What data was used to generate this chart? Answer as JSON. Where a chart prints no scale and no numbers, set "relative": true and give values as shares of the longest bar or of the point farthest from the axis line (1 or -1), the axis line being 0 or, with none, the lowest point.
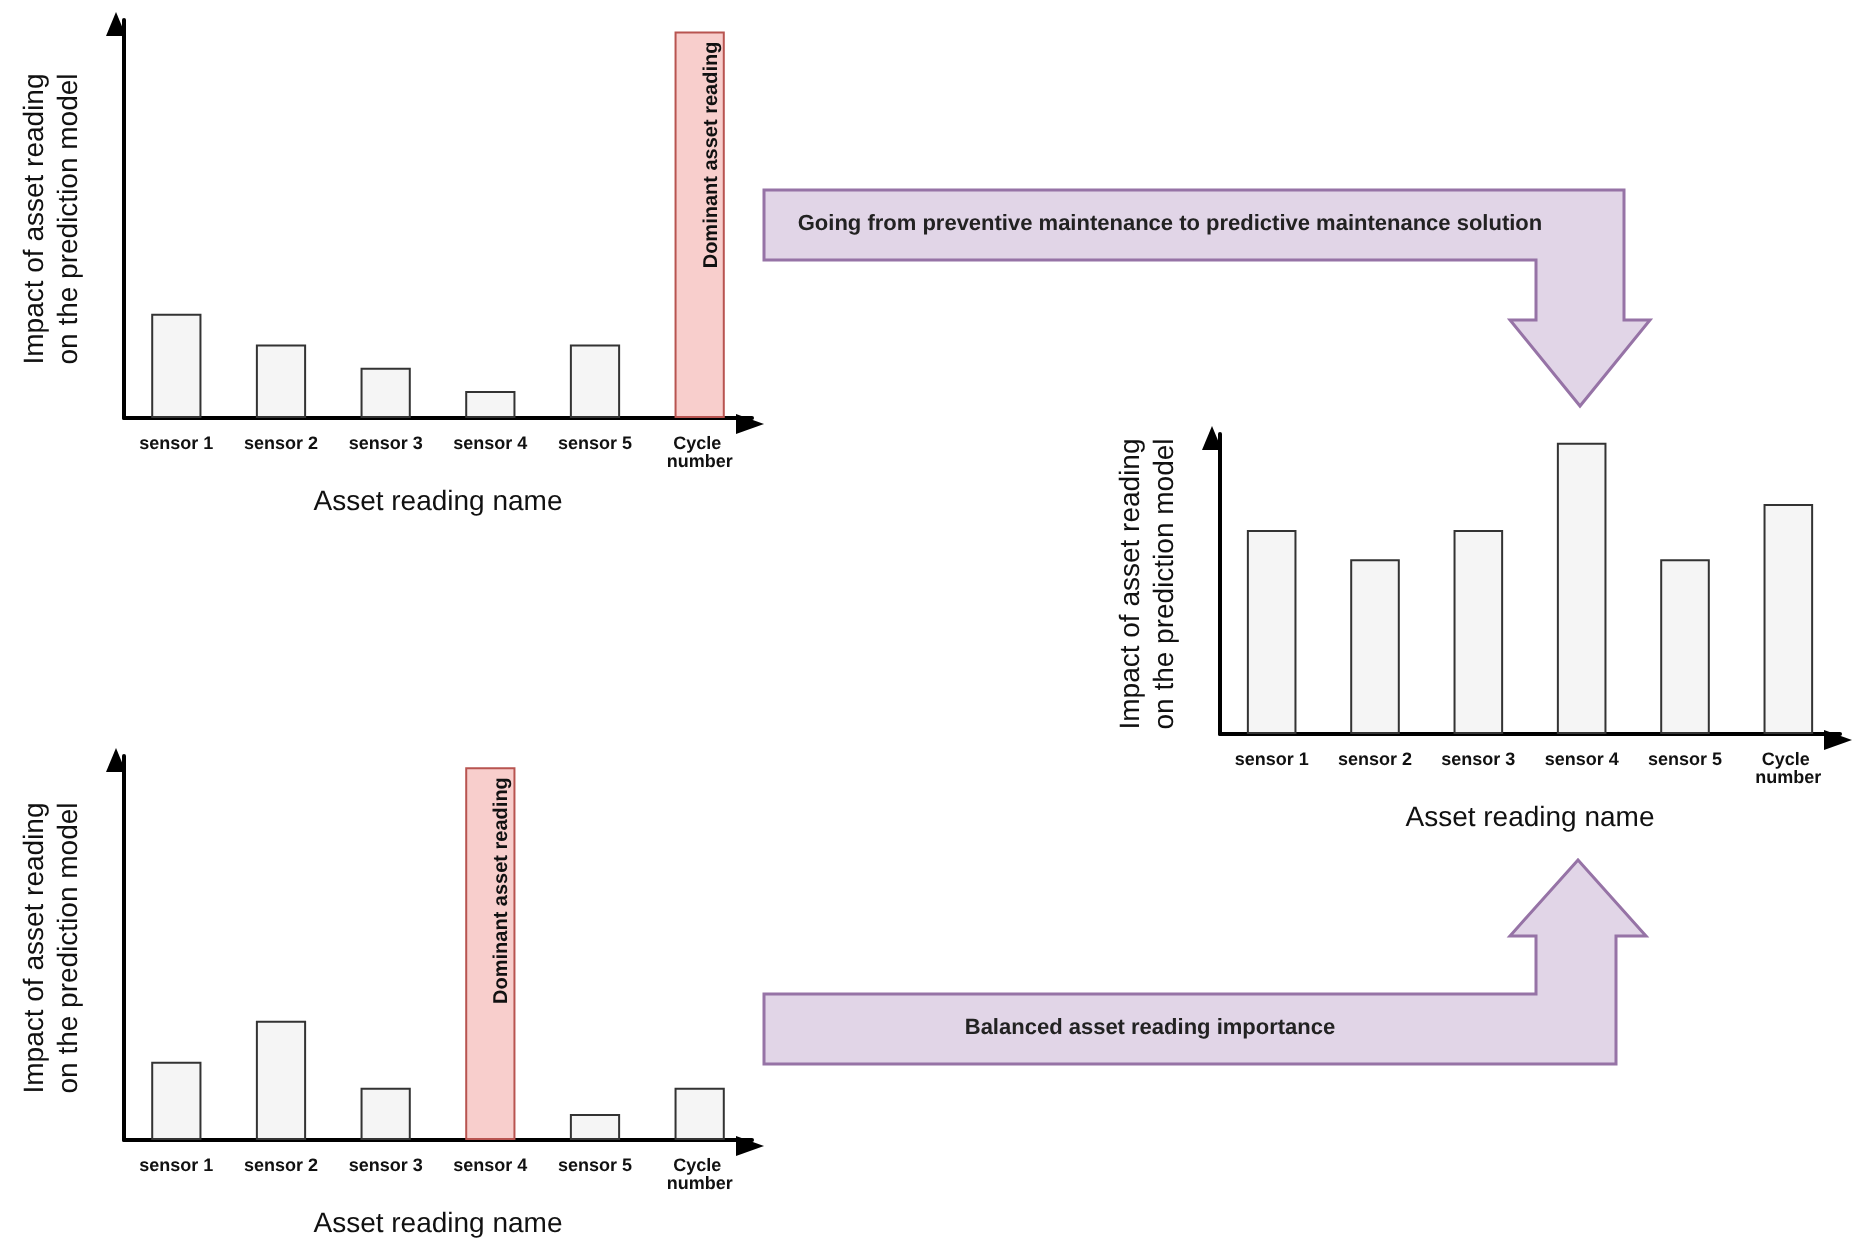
{
  "chart_data": [
    {
      "type": "bar",
      "relative": true,
      "ylabel": "Impact of asset reading on the prediction model",
      "xlabel": "Asset reading name",
      "categories": [
        "sensor 1",
        "sensor 2",
        "sensor 3",
        "sensor 4",
        "sensor 5",
        "Cycle number"
      ],
      "values": [
        0.27,
        0.19,
        0.13,
        0.07,
        0.19,
        1
      ],
      "colors": [
        "#f5f5f5",
        "#f5f5f5",
        "#f5f5f5",
        "#f5f5f5",
        "#f5f5f5",
        "#f8cecc"
      ],
      "annotations": [
        "Dominant asset reading",
        "Going from preventive maintenance to predictive maintenance solution"
      ]
    },
    {
      "type": "bar",
      "relative": true,
      "ylabel": "Impact of asset reading on the prediction model",
      "xlabel": "Asset reading name",
      "categories": [
        "sensor 1",
        "sensor 2",
        "sensor 3",
        "sensor 4",
        "sensor 5",
        "Cycle number"
      ],
      "values": [
        0.21,
        0.32,
        0.14,
        1,
        0.07,
        0.14
      ],
      "colors": [
        "#f5f5f5",
        "#f5f5f5",
        "#f5f5f5",
        "#f8cecc",
        "#f5f5f5",
        "#f5f5f5"
      ],
      "annotations": [
        "Dominant asset reading",
        "Balanced asset reading importance"
      ]
    },
    {
      "type": "bar",
      "relative": true,
      "ylabel": "Impact of asset reading on the prediction model",
      "xlabel": "Asset reading name",
      "categories": [
        "sensor 1",
        "sensor 2",
        "sensor 3",
        "sensor 4",
        "sensor 5",
        "Cycle number"
      ],
      "values": [
        0.7,
        0.6,
        0.7,
        1,
        0.6,
        0.79
      ],
      "colors": [
        "#f5f5f5",
        "#f5f5f5",
        "#f5f5f5",
        "#f5f5f5",
        "#f5f5f5",
        "#f5f5f5"
      ]
    }
  ]
}
